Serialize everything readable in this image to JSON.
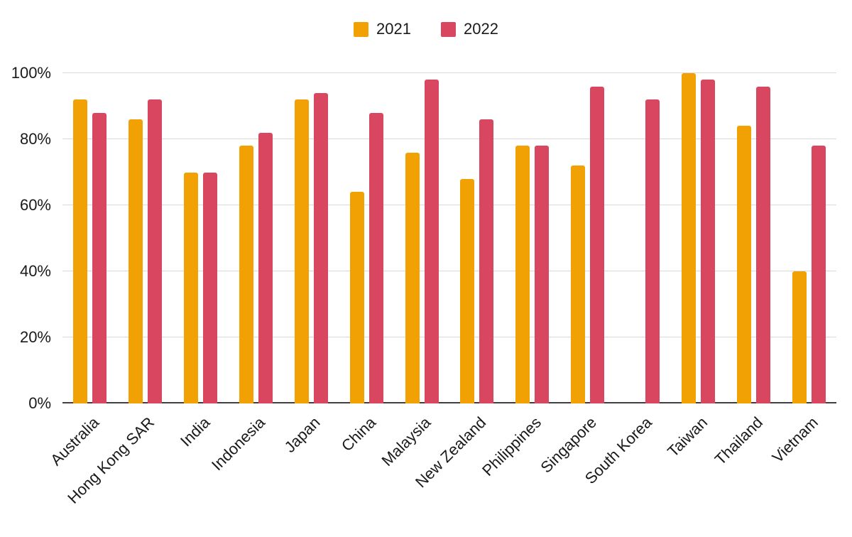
{
  "chart_data": {
    "type": "bar",
    "title": "",
    "xlabel": "",
    "ylabel": "",
    "ylim": [
      0,
      100
    ],
    "y_ticks": [
      "0%",
      "20%",
      "40%",
      "60%",
      "80%",
      "100%"
    ],
    "grid": true,
    "legend_position": "top",
    "categories": [
      "Australia",
      "Hong Kong SAR",
      "India",
      "Indonesia",
      "Japan",
      "China",
      "Malaysia",
      "New Zealand",
      "Philippines",
      "Singapore",
      "South Korea",
      "Taiwan",
      "Thailand",
      "Vietnam"
    ],
    "series": [
      {
        "name": "2021",
        "color": "#F2A104",
        "values": [
          92,
          86,
          70,
          78,
          92,
          64,
          76,
          68,
          78,
          72,
          null,
          100,
          84,
          40
        ]
      },
      {
        "name": "2022",
        "color": "#D9465F",
        "values": [
          88,
          92,
          70,
          82,
          94,
          88,
          98,
          86,
          78,
          96,
          92,
          98,
          96,
          78
        ]
      }
    ]
  },
  "colors": {
    "gridline": "#d9d9d9",
    "axis_line": "#3f3f3f",
    "text": "#1a1a1a",
    "background": "#ffffff"
  }
}
